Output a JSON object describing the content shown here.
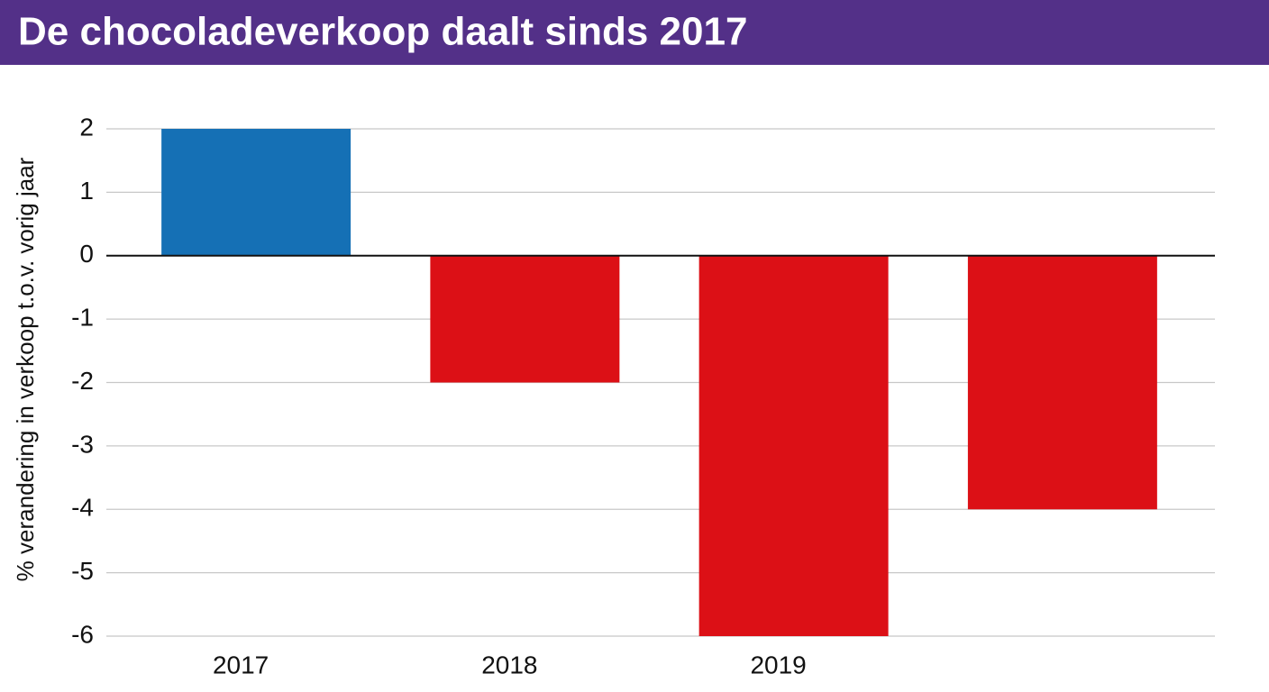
{
  "chart_data": {
    "type": "bar",
    "title": "De chocoladeverkoop daalt sinds 2017",
    "y_label": "% verandering in verkoop t.o.v. vorig jaar",
    "categories": [
      "2017",
      "2018",
      "2019",
      null
    ],
    "values": [
      2,
      -2,
      -6,
      -4
    ],
    "colors": [
      "#1570b5",
      "#dc1016",
      "#dc1016",
      "#dc1016"
    ],
    "ylim": [
      -6,
      2
    ],
    "yticks": [
      -6,
      -5,
      -4,
      -3,
      -2,
      -1,
      0,
      1,
      2
    ],
    "grid": true
  }
}
